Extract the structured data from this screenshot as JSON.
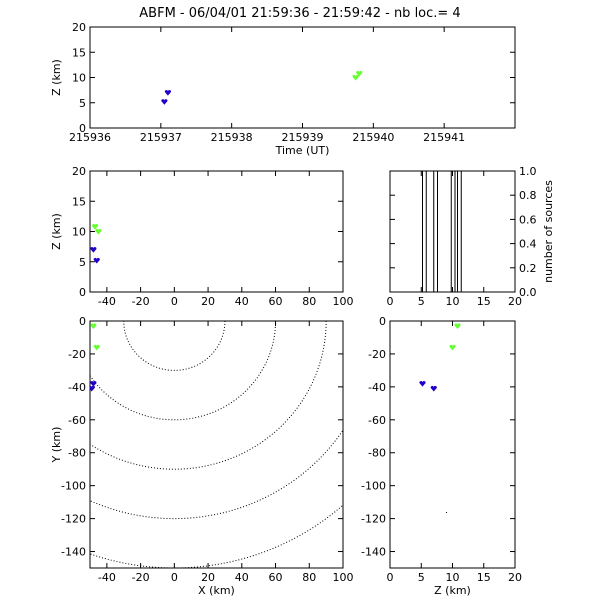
{
  "title": "ABFM - 06/04/01 21:59:36 - 21:59:42 - nb loc.=       4",
  "colors": {
    "blue": "#2200cc",
    "green": "#66ff33",
    "axis": "#000000"
  },
  "chart_data": [
    {
      "panel": "time-z",
      "type": "scatter",
      "xlabel": "Time (UT)",
      "ylabel": "Z (km)",
      "xlim": [
        215936,
        215942
      ],
      "ylim": [
        0,
        20
      ],
      "xticks": [
        "215936",
        "215937",
        "215938",
        "215939",
        "215940",
        "215941"
      ],
      "yticks": [
        "0",
        "5",
        "10",
        "15",
        "20"
      ],
      "series": [
        {
          "color": "blue",
          "points": [
            [
              215937.05,
              5.2
            ],
            [
              215937.1,
              7.0
            ]
          ]
        },
        {
          "color": "green",
          "points": [
            [
              215939.75,
              10.0
            ],
            [
              215939.8,
              10.8
            ]
          ]
        }
      ]
    },
    {
      "panel": "x-z",
      "type": "scatter",
      "xlabel": "",
      "ylabel": "Z (km)",
      "xlim": [
        -50,
        100
      ],
      "ylim": [
        0,
        20
      ],
      "xticks": [
        "-40",
        "-20",
        "0",
        "20",
        "40",
        "60",
        "80",
        "100"
      ],
      "yticks": [
        "0",
        "5",
        "10",
        "15",
        "20"
      ],
      "series": [
        {
          "color": "blue",
          "points": [
            [
              -48,
              7.0
            ],
            [
              -46,
              5.2
            ]
          ]
        },
        {
          "color": "green",
          "points": [
            [
              -47,
              10.8
            ],
            [
              -45,
              10.0
            ]
          ]
        }
      ]
    },
    {
      "panel": "histogram",
      "type": "bar",
      "xlabel": "",
      "ylabel": "number of sources",
      "xlim": [
        0,
        20
      ],
      "ylim": [
        0,
        1.0
      ],
      "xticks": [
        "0",
        "5",
        "10",
        "15",
        "20"
      ],
      "yticks": [
        "0.0",
        "0.2",
        "0.4",
        "0.6",
        "0.8",
        "1.0"
      ],
      "bars": [
        [
          5.2,
          5.8
        ],
        [
          7.0,
          7.6
        ],
        [
          9.8,
          10.4
        ],
        [
          10.8,
          11.4
        ]
      ]
    },
    {
      "panel": "x-y",
      "type": "scatter",
      "xlabel": "X (km)",
      "ylabel": "Y (km)",
      "xlim": [
        -50,
        100
      ],
      "ylim": [
        -150,
        0
      ],
      "xticks": [
        "-40",
        "-20",
        "0",
        "20",
        "40",
        "60",
        "80",
        "100"
      ],
      "yticks": [
        "0",
        "-20",
        "-40",
        "-60",
        "-80",
        "-100",
        "-120",
        "-140"
      ],
      "contours_radius_km": [
        30,
        60,
        90,
        120,
        150
      ],
      "series": [
        {
          "color": "blue",
          "points": [
            [
              -48,
              -38
            ],
            [
              -49,
              -41
            ]
          ]
        },
        {
          "color": "green",
          "points": [
            [
              -48,
              -3
            ],
            [
              -46,
              -16
            ]
          ]
        }
      ]
    },
    {
      "panel": "z-y",
      "type": "scatter",
      "xlabel": "Z (km)",
      "ylabel": "",
      "xlim": [
        0,
        20
      ],
      "ylim": [
        -150,
        0
      ],
      "xticks": [
        "0",
        "5",
        "10",
        "15",
        "20"
      ],
      "yticks": [
        "0",
        "-20",
        "-40",
        "-60",
        "-80",
        "-100",
        "-120",
        "-140"
      ],
      "series": [
        {
          "color": "blue",
          "points": [
            [
              5.2,
              -38
            ],
            [
              7.0,
              -41
            ]
          ]
        },
        {
          "color": "green",
          "points": [
            [
              10.0,
              -16
            ],
            [
              10.8,
              -3
            ]
          ]
        }
      ]
    }
  ]
}
